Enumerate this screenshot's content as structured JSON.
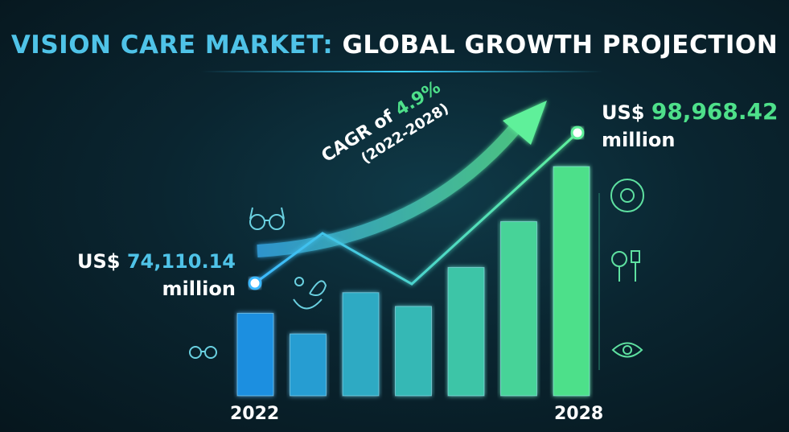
{
  "title": {
    "part1": "VISION CARE MARKET:",
    "part2": "GLOBAL GROWTH PROJECTION"
  },
  "chart_data": {
    "type": "bar",
    "title": "VISION CARE MARKET: GLOBAL GROWTH PROJECTION",
    "categories": [
      "2022",
      "",
      "",
      "",
      "",
      "",
      "2028"
    ],
    "bar_levels": [
      0.36,
      0.27,
      0.45,
      0.39,
      0.56,
      0.76,
      1.0
    ],
    "x_tick_labels": [
      "2022",
      "2028"
    ],
    "start": {
      "prefix": "US$",
      "value": "74,110.14",
      "unit": "million"
    },
    "end": {
      "prefix": "US$",
      "value": "98,968.42",
      "unit": "million"
    },
    "cagr": {
      "label": "CAGR of",
      "value": "4.9%",
      "period": "(2022-2028)"
    },
    "grid": false,
    "colors": {
      "bar_start": "#1e8fe0",
      "bar_end": "#4ee08a",
      "accent_blue": "#4fc3e8",
      "accent_green": "#4ee08a"
    }
  },
  "icons": [
    "glasses-icon",
    "contact-lens-icon",
    "eye-scan-icon",
    "eye-exam-tools-icon",
    "eye-icon"
  ]
}
